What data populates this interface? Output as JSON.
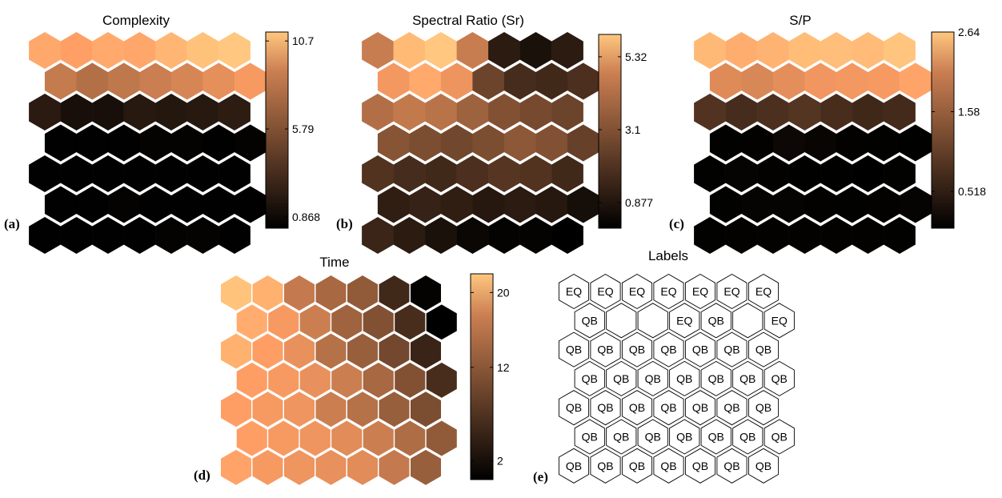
{
  "chart_data": [
    {
      "type": "heatmap",
      "panel": "(a)",
      "title": "Complexity",
      "colormap": "copper",
      "clim": [
        0.25,
        11.2
      ],
      "colorbar_ticks": [
        "10.7",
        "5.79",
        "0.868"
      ],
      "colorbar_tick_values": [
        10.7,
        5.79,
        0.868
      ],
      "values": [
        [
          9.5,
          9.0,
          9.6,
          9.4,
          10.2,
          10.9,
          11.2
        ],
        [
          7.0,
          6.4,
          6.8,
          7.2,
          7.6,
          8.1,
          8.7
        ],
        [
          1.7,
          1.1,
          1.1,
          1.6,
          1.5,
          1.6,
          1.8
        ],
        [
          0.3,
          0.3,
          0.3,
          0.4,
          0.4,
          0.3,
          0.4
        ],
        [
          0.3,
          0.3,
          0.3,
          0.3,
          0.3,
          0.3,
          0.3
        ],
        [
          0.3,
          0.3,
          0.4,
          0.3,
          0.3,
          0.3,
          0.3
        ],
        [
          0.3,
          0.3,
          0.3,
          0.3,
          0.4,
          0.4,
          0.3
        ]
      ]
    },
    {
      "type": "heatmap",
      "panel": "(b)",
      "title": "Spectral Ratio (Sr)",
      "colormap": "copper",
      "clim": [
        0.1,
        6.0
      ],
      "colorbar_ticks": [
        "5.32",
        "3.1",
        "0.877"
      ],
      "colorbar_tick_values": [
        5.32,
        3.1,
        0.877
      ],
      "values": [
        [
          3.8,
          5.6,
          6.0,
          3.8,
          0.9,
          0.6,
          0.9
        ],
        [
          4.6,
          5.1,
          4.5,
          2.1,
          1.4,
          1.3,
          1.5
        ],
        [
          3.4,
          3.7,
          3.5,
          3.0,
          2.5,
          2.3,
          2.1
        ],
        [
          2.6,
          2.4,
          2.2,
          2.4,
          2.7,
          2.5,
          2.0
        ],
        [
          1.6,
          1.4,
          1.3,
          1.5,
          1.7,
          1.6,
          1.3
        ],
        [
          1.0,
          1.1,
          1.0,
          0.8,
          0.9,
          0.8,
          0.5
        ],
        [
          1.2,
          0.9,
          0.6,
          0.3,
          0.2,
          0.2,
          0.1
        ]
      ]
    },
    {
      "type": "heatmap",
      "panel": "(c)",
      "title": "S/P",
      "colormap": "copper",
      "clim": [
        0.03,
        2.64
      ],
      "colorbar_ticks": [
        "2.64",
        "1.58",
        "0.518"
      ],
      "colorbar_tick_values": [
        2.64,
        1.58,
        0.518
      ],
      "values": [
        [
          2.45,
          2.3,
          2.38,
          2.5,
          2.52,
          2.48,
          2.6
        ],
        [
          1.85,
          1.8,
          1.9,
          2.0,
          2.02,
          2.05,
          2.18
        ],
        [
          0.7,
          0.6,
          0.65,
          0.72,
          0.62,
          0.55,
          0.58
        ],
        [
          0.05,
          0.06,
          0.14,
          0.1,
          0.06,
          0.05,
          0.04
        ],
        [
          0.05,
          0.08,
          0.06,
          0.04,
          0.04,
          0.03,
          0.05
        ],
        [
          0.05,
          0.08,
          0.08,
          0.06,
          0.05,
          0.06,
          0.08
        ],
        [
          0.05,
          0.06,
          0.06,
          0.06,
          0.06,
          0.06,
          0.05
        ]
      ]
    },
    {
      "type": "heatmap",
      "panel": "(d)",
      "title": "Time",
      "colormap": "copper",
      "clim": [
        0.0,
        22.0
      ],
      "colorbar_ticks": [
        "20",
        "12",
        "2"
      ],
      "colorbar_tick_values": [
        20,
        12,
        2
      ],
      "values": [
        [
          21.5,
          19.5,
          13.5,
          11.5,
          10.0,
          4.5,
          0.3
        ],
        [
          19.0,
          17.0,
          14.0,
          11.0,
          9.0,
          5.0,
          0.0
        ],
        [
          19.5,
          17.5,
          16.0,
          12.5,
          10.5,
          8.0,
          4.0
        ],
        [
          17.5,
          17.0,
          16.0,
          14.0,
          11.5,
          9.0,
          5.0
        ],
        [
          17.5,
          17.0,
          16.5,
          14.0,
          12.5,
          10.5,
          8.5
        ],
        [
          17.5,
          17.0,
          16.5,
          15.5,
          14.0,
          12.0,
          10.0
        ],
        [
          18.0,
          17.0,
          16.5,
          16.0,
          15.5,
          13.5,
          10.5
        ]
      ]
    },
    {
      "type": "table",
      "panel": "(e)",
      "title": "Labels",
      "labels": [
        [
          "EQ",
          "EQ",
          "EQ",
          "EQ",
          "EQ",
          "EQ",
          "EQ"
        ],
        [
          "QB",
          "",
          "",
          "EQ",
          "QB",
          "",
          "EQ"
        ],
        [
          "QB",
          "QB",
          "QB",
          "QB",
          "QB",
          "QB",
          "QB"
        ],
        [
          "QB",
          "QB",
          "QB",
          "QB",
          "QB",
          "QB",
          "QB"
        ],
        [
          "QB",
          "QB",
          "QB",
          "QB",
          "QB",
          "QB",
          "QB"
        ],
        [
          "QB",
          "QB",
          "QB",
          "QB",
          "QB",
          "QB",
          "QB"
        ],
        [
          "QB",
          "QB",
          "QB",
          "QB",
          "QB",
          "QB",
          "QB"
        ]
      ]
    }
  ]
}
